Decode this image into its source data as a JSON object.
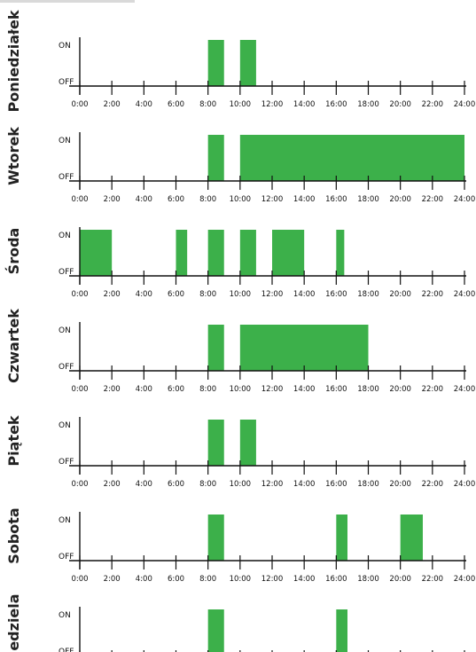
{
  "chart_data": {
    "type": "area",
    "y_levels": [
      "OFF",
      "ON"
    ],
    "x_ticks": [
      "0:00",
      "2:00",
      "4:00",
      "6:00",
      "8:00",
      "10:00",
      "12:00",
      "14:00",
      "16:00",
      "18:00",
      "20:00",
      "22:00",
      "24:00"
    ],
    "xlim": [
      0,
      24
    ],
    "grid": false,
    "on_color": "#3cb04a",
    "days": [
      {
        "name": "Poniedziałek",
        "on_intervals": [
          [
            8.0,
            9.0
          ],
          [
            10.0,
            11.0
          ]
        ]
      },
      {
        "name": "Wtorek",
        "on_intervals": [
          [
            8.0,
            9.0
          ],
          [
            10.0,
            24.0
          ]
        ]
      },
      {
        "name": "Środa",
        "on_intervals": [
          [
            0.0,
            2.0
          ],
          [
            6.0,
            6.7
          ],
          [
            8.0,
            9.0
          ],
          [
            10.0,
            11.0
          ],
          [
            12.0,
            14.0
          ],
          [
            16.0,
            16.5
          ]
        ]
      },
      {
        "name": "Czwartek",
        "on_intervals": [
          [
            8.0,
            9.0
          ],
          [
            10.0,
            18.0
          ]
        ]
      },
      {
        "name": "Piątek",
        "on_intervals": [
          [
            8.0,
            9.0
          ],
          [
            10.0,
            11.0
          ]
        ]
      },
      {
        "name": "Sobota",
        "on_intervals": [
          [
            8.0,
            9.0
          ],
          [
            16.0,
            16.7
          ],
          [
            20.0,
            21.4
          ]
        ]
      },
      {
        "name": "Niedziela",
        "on_intervals": [
          [
            8.0,
            9.0
          ],
          [
            16.0,
            16.7
          ]
        ]
      }
    ]
  }
}
